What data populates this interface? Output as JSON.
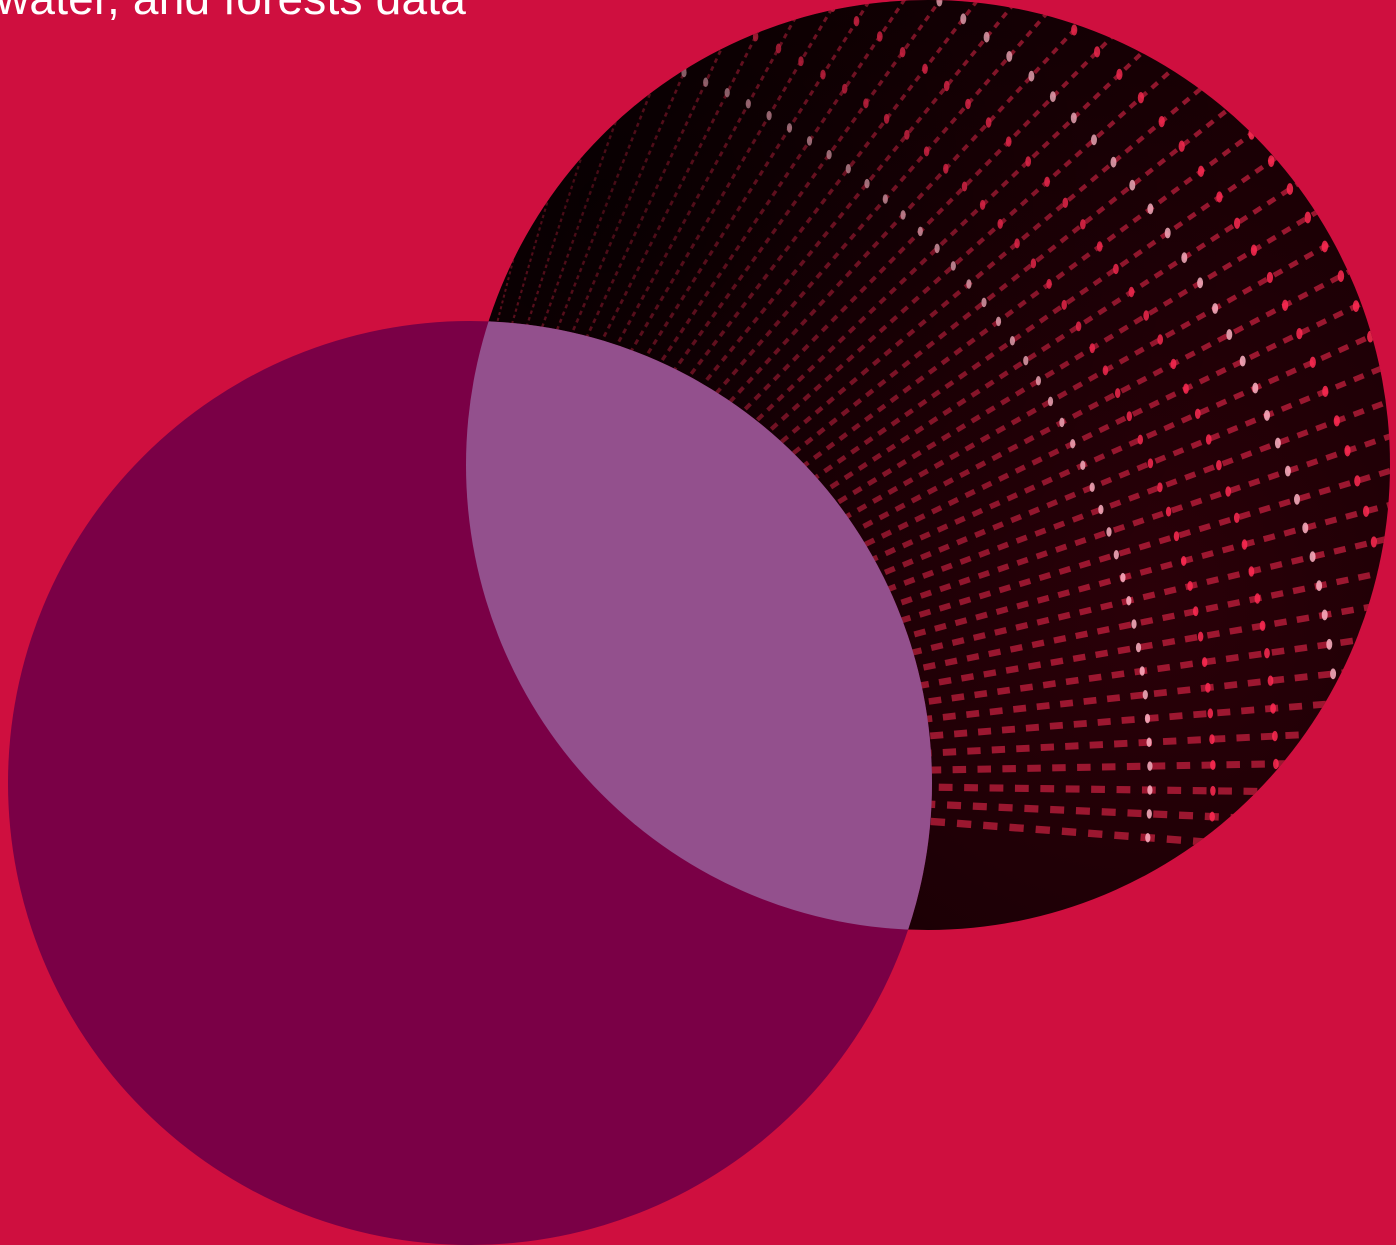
{
  "hero": {
    "headline_fragment": "water, and forests data"
  },
  "colors": {
    "background": "#cf0f3f",
    "plum_circle": "#7a0046",
    "overlap_lens": "#93508d",
    "led_glow": "#ff2a52",
    "led_dark": "#1a0004"
  },
  "decor": {
    "photo_subject": "red-led-wall"
  }
}
